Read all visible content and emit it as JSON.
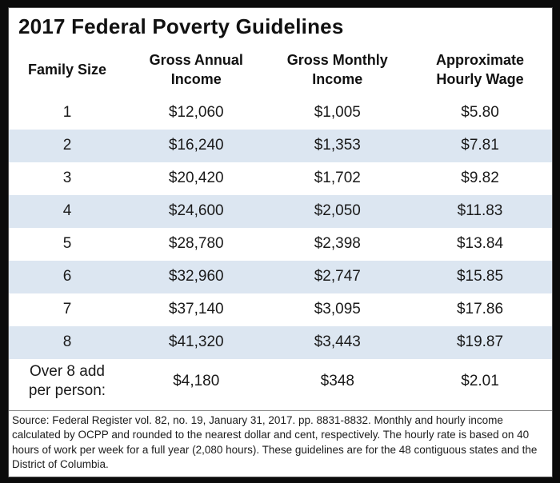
{
  "title": "2017 Federal Poverty Guidelines",
  "chart_data": {
    "type": "table",
    "title": "2017 Federal Poverty Guidelines",
    "columns": [
      "Family Size",
      "Gross Annual\nIncome",
      "Gross Monthly\nIncome",
      "Approximate\nHourly Wage"
    ],
    "rows": [
      [
        "1",
        "$12,060",
        "$1,005",
        "$5.80"
      ],
      [
        "2",
        "$16,240",
        "$1,353",
        "$7.81"
      ],
      [
        "3",
        "$20,420",
        "$1,702",
        "$9.82"
      ],
      [
        "4",
        "$24,600",
        "$2,050",
        "$11.83"
      ],
      [
        "5",
        "$28,780",
        "$2,398",
        "$13.84"
      ],
      [
        "6",
        "$32,960",
        "$2,747",
        "$15.85"
      ],
      [
        "7",
        "$37,140",
        "$3,095",
        "$17.86"
      ],
      [
        "8",
        "$41,320",
        "$3,443",
        "$19.87"
      ],
      [
        "Over 8 add\nper person:",
        "$4,180",
        "$348",
        "$2.01"
      ]
    ],
    "striped_family_sizes": [
      2,
      4,
      6,
      8
    ],
    "source_note": "Source: Federal Register vol. 82, no. 19, January 31, 2017. pp. 8831-8832. Monthly and hourly income calculated by OCPP and rounded to the nearest dollar and cent, respectively. The hourly rate is based on 40 hours of work per week for a full year (2,080 hours). These guidelines are for the 48 contiguous states and the District of Columbia."
  },
  "colors": {
    "row_stripe": "#dce6f1",
    "frame_background": "#0b0b0b",
    "panel_background": "#ffffff",
    "text": "#1a1a1a"
  }
}
